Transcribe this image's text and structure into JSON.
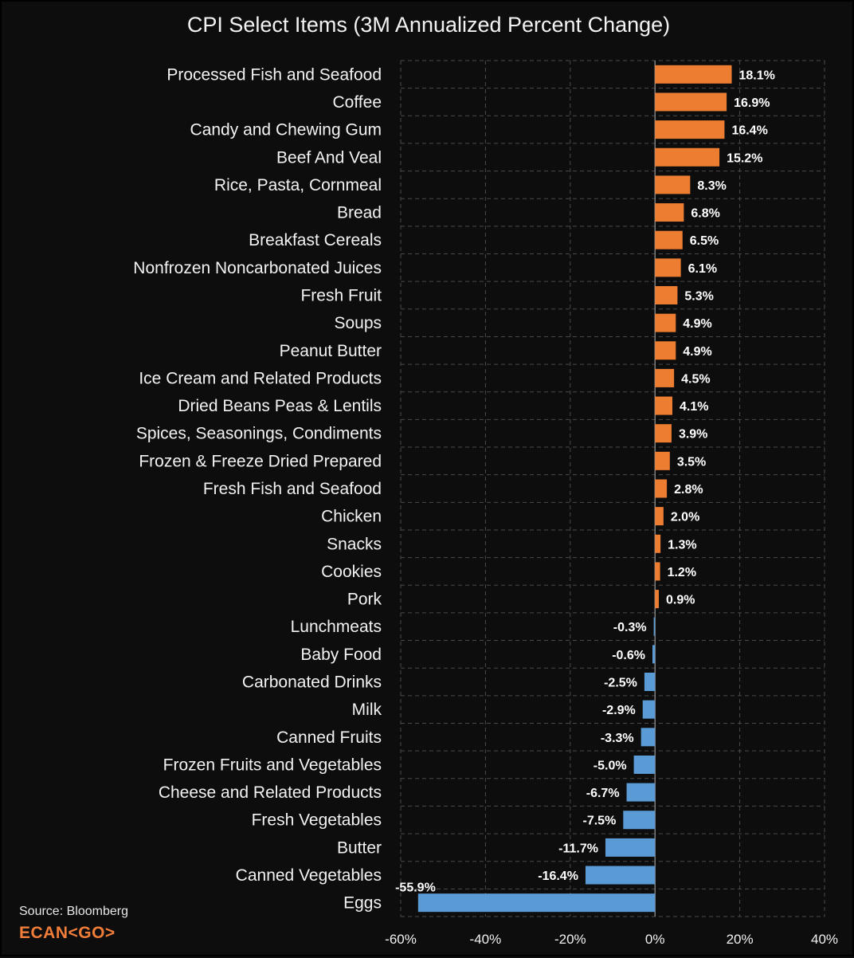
{
  "chart_data": {
    "type": "bar",
    "orientation": "horizontal",
    "title": "CPI Select Items (3M Annualized Percent Change)",
    "xlabel": "",
    "ylabel": "",
    "xlim": [
      -60,
      40
    ],
    "xticks": [
      -60,
      -40,
      -20,
      0,
      20,
      40
    ],
    "xtick_labels": [
      "-60%",
      "-40%",
      "-20%",
      "0%",
      "20%",
      "40%"
    ],
    "grid": true,
    "positive_color": "#ed7d31",
    "negative_color": "#5b9bd5",
    "categories": [
      "Processed Fish and Seafood",
      "Coffee",
      "Candy and Chewing Gum",
      "Beef And Veal",
      "Rice, Pasta, Cornmeal",
      "Bread",
      "Breakfast Cereals",
      "Nonfrozen Noncarbonated Juices",
      "Fresh Fruit",
      "Soups",
      "Peanut Butter",
      "Ice Cream and Related Products",
      "Dried Beans Peas & Lentils",
      "Spices, Seasonings, Condiments",
      "Frozen & Freeze Dried Prepared",
      "Fresh Fish and Seafood",
      "Chicken",
      "Snacks",
      "Cookies",
      "Pork",
      "Lunchmeats",
      "Baby Food",
      "Carbonated Drinks",
      "Milk",
      "Canned Fruits",
      "Frozen Fruits and Vegetables",
      "Cheese and Related Products",
      "Fresh Vegetables",
      "Butter",
      "Canned Vegetables",
      "Eggs"
    ],
    "values": [
      18.1,
      16.9,
      16.4,
      15.2,
      8.3,
      6.8,
      6.5,
      6.1,
      5.3,
      4.9,
      4.9,
      4.5,
      4.1,
      3.9,
      3.5,
      2.8,
      2.0,
      1.3,
      1.2,
      0.9,
      -0.3,
      -0.6,
      -2.5,
      -2.9,
      -3.3,
      -5.0,
      -6.7,
      -7.5,
      -11.7,
      -16.4,
      -55.9
    ],
    "data_labels": [
      "18.1%",
      "16.9%",
      "16.4%",
      "15.2%",
      "8.3%",
      "6.8%",
      "6.5%",
      "6.1%",
      "5.3%",
      "4.9%",
      "4.9%",
      "4.5%",
      "4.1%",
      "3.9%",
      "3.5%",
      "2.8%",
      "2.0%",
      "1.3%",
      "1.2%",
      "0.9%",
      "-0.3%",
      "-0.6%",
      "-2.5%",
      "-2.9%",
      "-3.3%",
      "-5.0%",
      "-6.7%",
      "-7.5%",
      "-11.7%",
      "-16.4%",
      "-55.9%"
    ]
  },
  "source": "Source: Bloomberg",
  "brand": "ECAN<GO>"
}
